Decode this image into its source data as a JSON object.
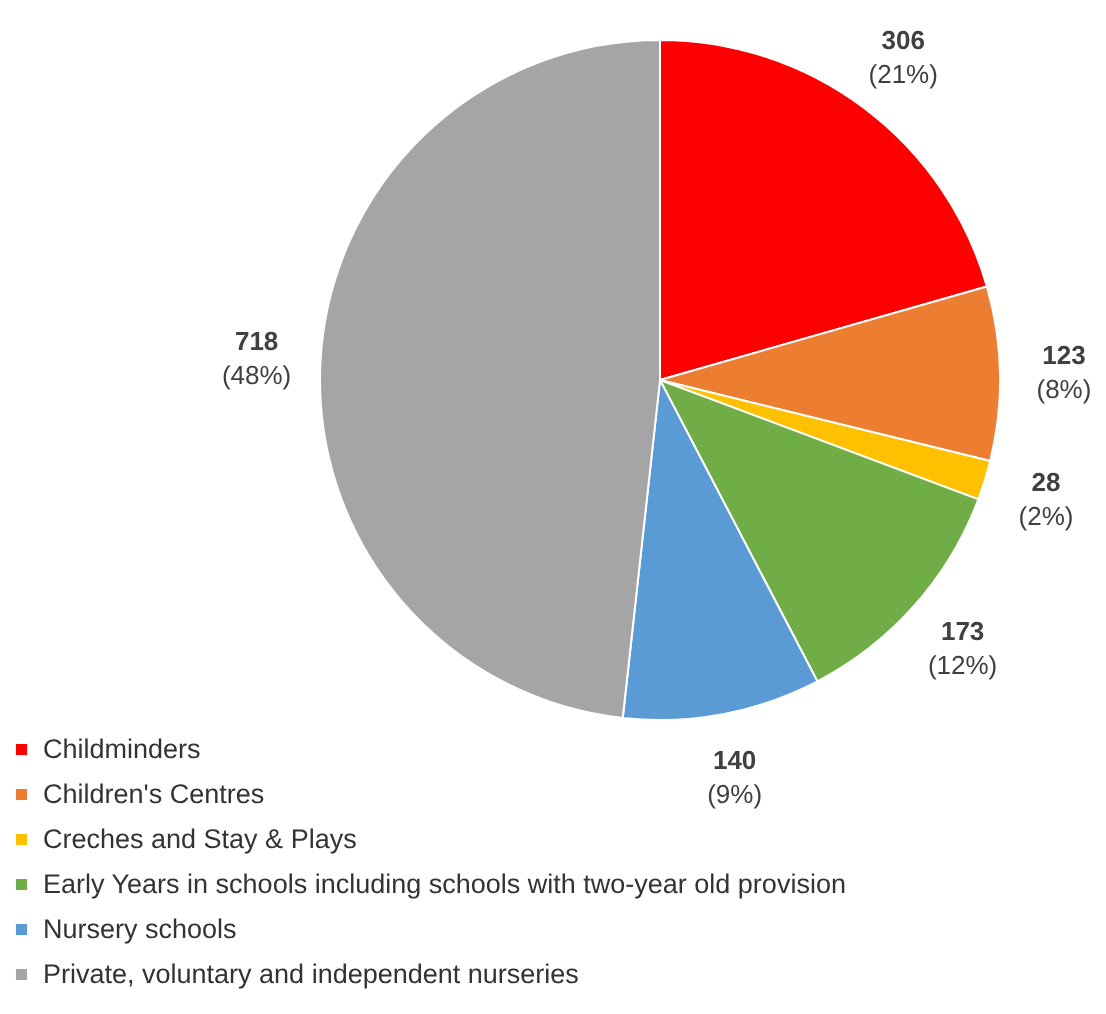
{
  "chart_data": {
    "type": "pie",
    "categories": [
      "Childminders",
      "Children's Centres",
      "Creches and Stay & Plays",
      "Early Years in schools including schools with two-year old provision",
      "Nursery schools",
      "Private, voluntary and independent nurseries"
    ],
    "values": [
      306,
      123,
      28,
      173,
      140,
      718
    ],
    "colors": [
      "#ff0000",
      "#ed7d31",
      "#ffc000",
      "#70ad47",
      "#5b9bd5",
      "#a5a5a5"
    ],
    "data_labels": true,
    "annotations": [
      "(21%)",
      "(8%)",
      "(2%)",
      "(12%)",
      "(9%)",
      "(48%)"
    ],
    "legend": "bottom left"
  }
}
